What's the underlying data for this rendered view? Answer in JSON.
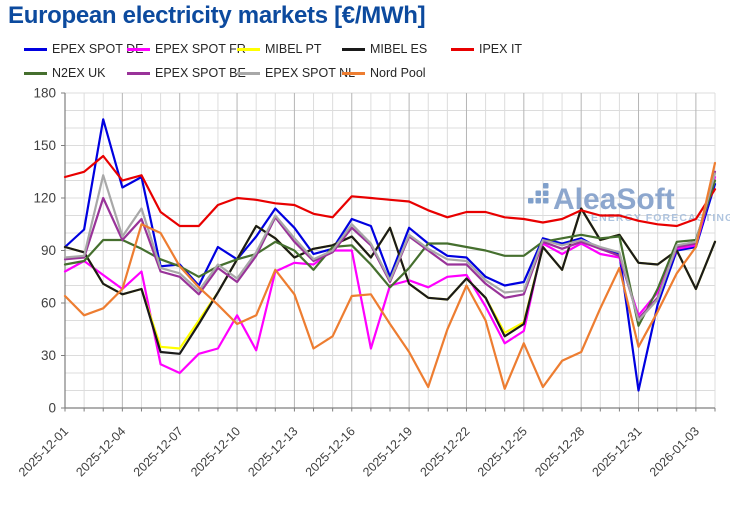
{
  "title": "European electricity markets [€/MWh]",
  "watermark": {
    "brand": "AleaSoft",
    "tagline": "ENERGY FORECASTING"
  },
  "chart_data": {
    "type": "line",
    "title": "European electricity markets [€/MWh]",
    "ylabel": "",
    "xlabel": "",
    "ylim": [
      0,
      180
    ],
    "yticks": [
      0,
      30,
      60,
      90,
      120,
      150,
      180
    ],
    "grid": "on",
    "legend_position": "top",
    "x": [
      "2025-12-01",
      "2025-12-02",
      "2025-12-03",
      "2025-12-04",
      "2025-12-05",
      "2025-12-06",
      "2025-12-07",
      "2025-12-08",
      "2025-12-09",
      "2025-12-10",
      "2025-12-11",
      "2025-12-12",
      "2025-12-13",
      "2025-12-14",
      "2025-12-15",
      "2025-12-16",
      "2025-12-17",
      "2025-12-18",
      "2025-12-19",
      "2025-12-20",
      "2025-12-21",
      "2025-12-22",
      "2025-12-23",
      "2025-12-24",
      "2025-12-25",
      "2025-12-26",
      "2025-12-27",
      "2025-12-28",
      "2025-12-29",
      "2025-12-30",
      "2025-12-31",
      "2026-01-01",
      "2026-01-02",
      "2026-01-03",
      "2026-01-04"
    ],
    "x_tick_labels": [
      "2025-12-01",
      "2025-12-04",
      "2025-12-07",
      "2025-12-10",
      "2025-12-13",
      "2025-12-16",
      "2025-12-19",
      "2025-12-22",
      "2025-12-25",
      "2025-12-28",
      "2025-12-31",
      "2026-01-03"
    ],
    "series": [
      {
        "name": "EPEX SPOT DE",
        "color": "#0000e0",
        "values": [
          92,
          102,
          165,
          126,
          132,
          81,
          82,
          70,
          92,
          85,
          98,
          114,
          103,
          88,
          91,
          108,
          104,
          75,
          103,
          94,
          87,
          86,
          75,
          70,
          72,
          97,
          94,
          97,
          91,
          88,
          10,
          59,
          90,
          92,
          128
        ]
      },
      {
        "name": "EPEX SPOT FR",
        "color": "#ff00ff",
        "values": [
          78,
          84,
          76,
          68,
          78,
          25,
          20,
          31,
          34,
          53,
          33,
          78,
          83,
          82,
          90,
          90,
          34,
          70,
          73,
          69,
          75,
          76,
          58,
          37,
          44,
          94,
          88,
          94,
          88,
          86,
          53,
          66,
          91,
          93,
          132
        ]
      },
      {
        "name": "MIBEL PT",
        "color": "#ffff00",
        "values": [
          92,
          89,
          71,
          65,
          68,
          35,
          34,
          50,
          66,
          85,
          104,
          97,
          86,
          91,
          93,
          98,
          86,
          103,
          71,
          63,
          62,
          74,
          63,
          43,
          49,
          92,
          79,
          114,
          96,
          99,
          83,
          82,
          90,
          68,
          95
        ]
      },
      {
        "name": "MIBEL ES",
        "color": "#1a1a1a",
        "values": [
          92,
          89,
          71,
          65,
          68,
          32,
          31,
          48,
          66,
          85,
          104,
          97,
          86,
          91,
          93,
          98,
          86,
          103,
          71,
          63,
          62,
          74,
          63,
          41,
          48,
          92,
          79,
          114,
          96,
          99,
          83,
          82,
          90,
          68,
          95
        ]
      },
      {
        "name": "IPEX IT",
        "color": "#e80000",
        "values": [
          132,
          135,
          144,
          130,
          133,
          112,
          104,
          104,
          116,
          120,
          119,
          117,
          116,
          111,
          109,
          121,
          120,
          119,
          118,
          113,
          109,
          112,
          112,
          109,
          108,
          106,
          108,
          113,
          110,
          110,
          107,
          105,
          104,
          108,
          125
        ]
      },
      {
        "name": "N2EX UK",
        "color": "#456f2e",
        "values": [
          82,
          84,
          96,
          96,
          91,
          85,
          81,
          75,
          81,
          85,
          88,
          95,
          90,
          79,
          92,
          93,
          82,
          69,
          80,
          94,
          94,
          92,
          90,
          87,
          87,
          95,
          97,
          99,
          97,
          98,
          47,
          68,
          95,
          96,
          130
        ]
      },
      {
        "name": "EPEX SPOT BE",
        "color": "#993399",
        "values": [
          85,
          86,
          120,
          96,
          108,
          78,
          75,
          65,
          80,
          72,
          87,
          109,
          95,
          84,
          89,
          103,
          93,
          72,
          98,
          90,
          82,
          82,
          71,
          63,
          65,
          95,
          91,
          95,
          91,
          87,
          51,
          63,
          92,
          94,
          135
        ]
      },
      {
        "name": "EPEX SPOT NL",
        "color": "#a8a8a8",
        "values": [
          86,
          87,
          133,
          98,
          114,
          80,
          77,
          67,
          82,
          74,
          89,
          110,
          97,
          85,
          90,
          105,
          94,
          73,
          99,
          91,
          85,
          84,
          73,
          66,
          67,
          96,
          93,
          96,
          92,
          89,
          50,
          62,
          93,
          95,
          134
        ]
      },
      {
        "name": "Nord Pool",
        "color": "#ed7d31",
        "values": [
          64,
          53,
          57,
          68,
          105,
          100,
          81,
          69,
          59,
          48,
          53,
          79,
          65,
          34,
          41,
          64,
          65,
          48,
          32,
          12,
          45,
          70,
          50,
          11,
          37,
          12,
          27,
          32,
          57,
          80,
          35,
          55,
          77,
          92,
          140
        ]
      }
    ]
  }
}
